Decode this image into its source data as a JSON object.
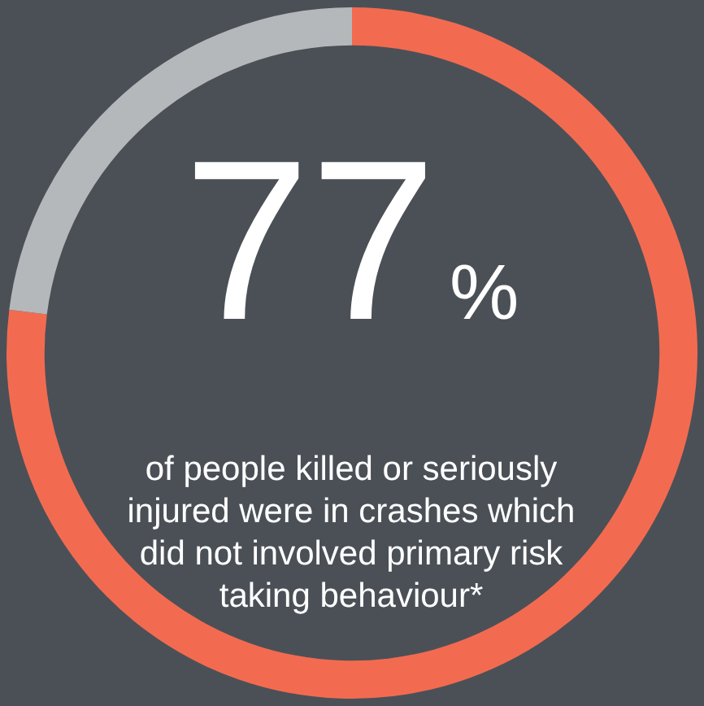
{
  "chart_data": {
    "type": "donut",
    "categories": [
      null,
      null
    ],
    "values": [
      77,
      23
    ],
    "colors": [
      "#f26b50",
      "#b5b8ba"
    ],
    "legend": false,
    "annotations": [
      "77%",
      "of people killed or seriously injured were in crashes which did not involved primary risk taking behaviour*"
    ]
  }
}
